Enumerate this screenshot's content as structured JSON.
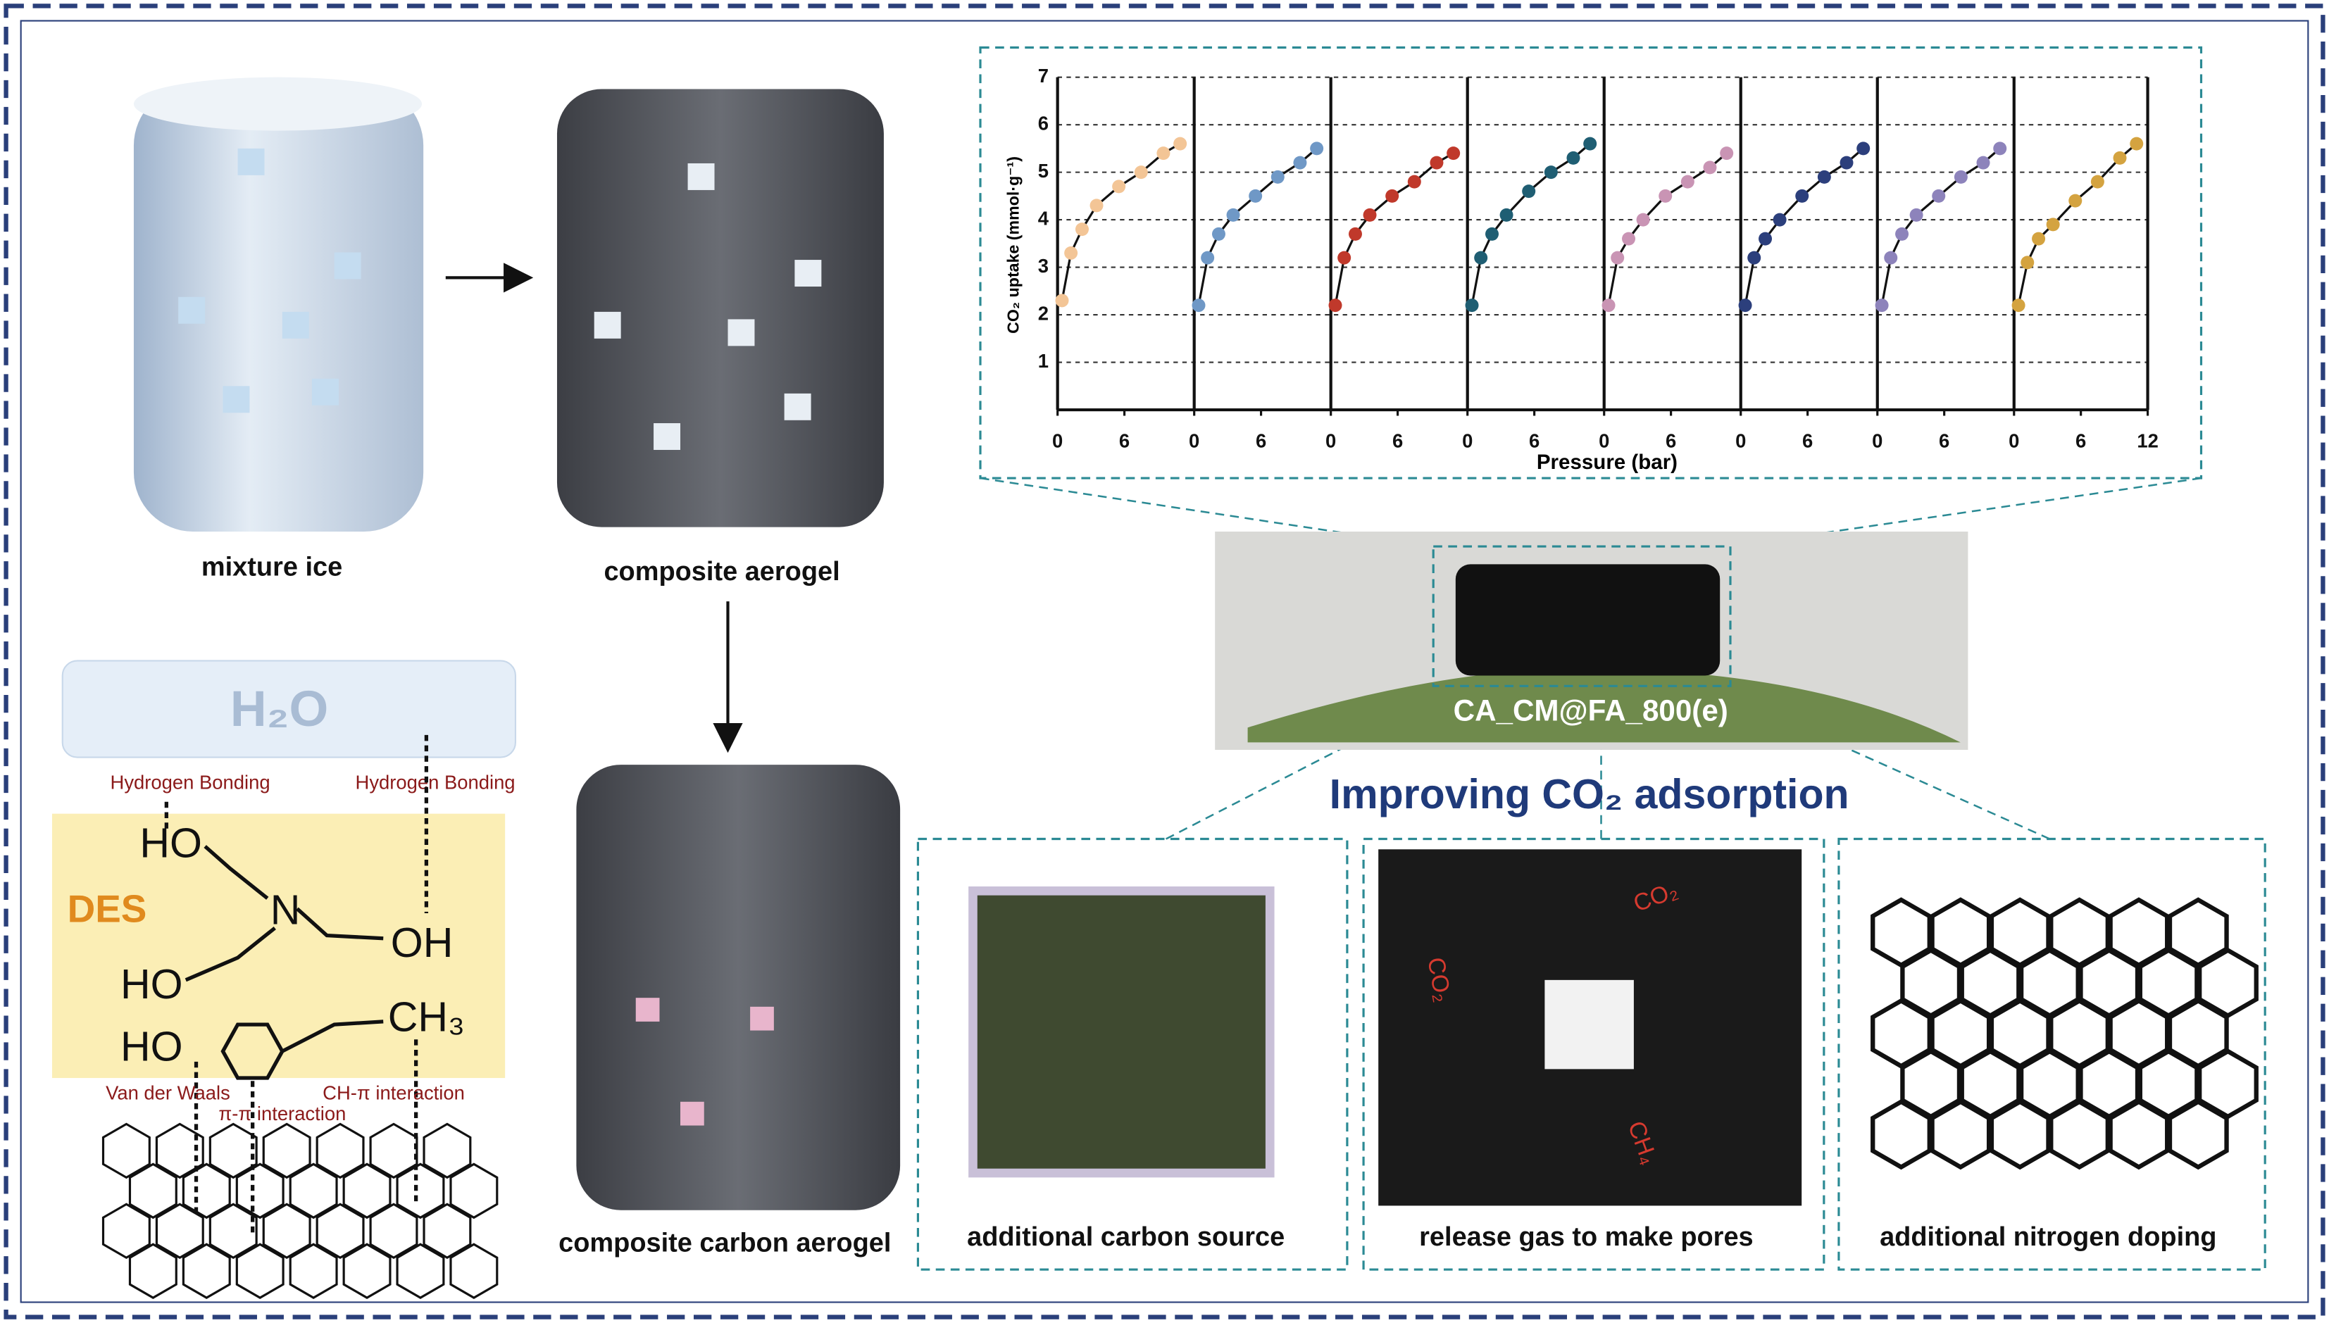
{
  "figure": {
    "mixture_ice": "mixture ice",
    "composite_aerogel": "composite aerogel",
    "composite_carbon_aerogel": "composite carbon aerogel",
    "water": {
      "label": "H₂O",
      "bonds": [
        "Hydrogen Bonding",
        "Hydrogen Bonding"
      ]
    },
    "des": {
      "title": "DES",
      "groups": [
        "HO",
        "N",
        "OH",
        "HO",
        "HO",
        "CH₃"
      ],
      "interactions": [
        "Van der Waals",
        "π-π interaction",
        "CH-π interaction"
      ]
    },
    "sample": "CA_CM@FA_800(e)",
    "headline": "Improving CO₂ adsorption",
    "mechanisms": [
      "additional carbon source",
      "release gas to make pores",
      "additional nitrogen doping"
    ],
    "gas_labels": [
      "CO₂",
      "CO₂",
      "CH₄"
    ]
  },
  "chart_data": {
    "type": "line",
    "ylabel": "CO₂ uptake (mmol·g⁻¹)",
    "xlabel": "Pressure (bar)",
    "ylim": [
      0,
      7
    ],
    "yticks": [
      1,
      2,
      3,
      4,
      5,
      6,
      7
    ],
    "xlim": [
      0,
      12
    ],
    "grid": true,
    "panels": [
      {
        "color": "#f3c596",
        "xticks": [
          0,
          6
        ],
        "x": [
          0.4,
          1.2,
          2.2,
          3.5,
          5.5,
          7.5,
          9.5,
          11
        ],
        "values": [
          2.3,
          3.3,
          3.8,
          4.3,
          4.7,
          5.0,
          5.4,
          5.6
        ]
      },
      {
        "color": "#6f98c6",
        "xticks": [
          0,
          6
        ],
        "x": [
          0.4,
          1.2,
          2.2,
          3.5,
          5.5,
          7.5,
          9.5,
          11
        ],
        "values": [
          2.2,
          3.2,
          3.7,
          4.1,
          4.5,
          4.9,
          5.2,
          5.5
        ]
      },
      {
        "color": "#c0392b",
        "xticks": [
          0,
          6
        ],
        "x": [
          0.4,
          1.2,
          2.2,
          3.5,
          5.5,
          7.5,
          9.5,
          11
        ],
        "values": [
          2.2,
          3.2,
          3.7,
          4.1,
          4.5,
          4.8,
          5.2,
          5.4
        ]
      },
      {
        "color": "#1f5e73",
        "xticks": [
          0,
          6
        ],
        "x": [
          0.4,
          1.2,
          2.2,
          3.5,
          5.5,
          7.5,
          9.5,
          11
        ],
        "values": [
          2.2,
          3.2,
          3.7,
          4.1,
          4.6,
          5.0,
          5.3,
          5.6
        ]
      },
      {
        "color": "#c994b4",
        "xticks": [
          0,
          6
        ],
        "x": [
          0.4,
          1.2,
          2.2,
          3.5,
          5.5,
          7.5,
          9.5,
          11
        ],
        "values": [
          2.2,
          3.2,
          3.6,
          4.0,
          4.5,
          4.8,
          5.1,
          5.4
        ]
      },
      {
        "color": "#2c3f7c",
        "xticks": [
          0,
          6
        ],
        "x": [
          0.4,
          1.2,
          2.2,
          3.5,
          5.5,
          7.5,
          9.5,
          11
        ],
        "values": [
          2.2,
          3.2,
          3.6,
          4.0,
          4.5,
          4.9,
          5.2,
          5.5
        ]
      },
      {
        "color": "#8d83bb",
        "xticks": [
          0,
          6
        ],
        "x": [
          0.4,
          1.2,
          2.2,
          3.5,
          5.5,
          7.5,
          9.5,
          11
        ],
        "values": [
          2.2,
          3.2,
          3.7,
          4.1,
          4.5,
          4.9,
          5.2,
          5.5
        ]
      },
      {
        "color": "#d4a340",
        "xticks": [
          0,
          6,
          12
        ],
        "x": [
          0.4,
          1.2,
          2.2,
          3.5,
          5.5,
          7.5,
          9.5,
          11
        ],
        "values": [
          2.2,
          3.1,
          3.6,
          3.9,
          4.4,
          4.8,
          5.3,
          5.6
        ]
      }
    ]
  }
}
